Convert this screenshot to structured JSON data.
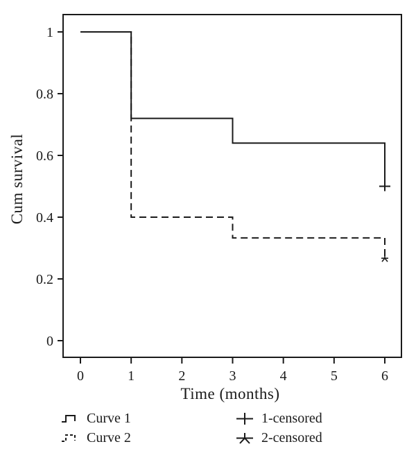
{
  "figure": {
    "background": "#ffffff",
    "line_color": "#1a1a1a",
    "text_color": "#1a1a1a"
  },
  "chart_data": {
    "type": "line",
    "subtype": "kaplan-meier-step",
    "title": "",
    "xlabel": "Time (months)",
    "ylabel": "Cum survival",
    "xlim": [
      0,
      6
    ],
    "ylim": [
      0,
      1
    ],
    "grid": false,
    "xticks": [
      0,
      1,
      2,
      3,
      4,
      5,
      6
    ],
    "xtick_labels": [
      "0",
      "1",
      "2",
      "3",
      "4",
      "5",
      "6"
    ],
    "yticks": [
      0,
      0.2,
      0.4,
      0.6,
      0.8,
      1
    ],
    "ytick_labels": [
      "0",
      "0.2",
      "0.4",
      "0.6",
      "0.8",
      "1"
    ],
    "series": [
      {
        "name": "Curve 1",
        "style": "solid",
        "points": [
          [
            0,
            1
          ],
          [
            1,
            1
          ],
          [
            1,
            0.72
          ],
          [
            3,
            0.72
          ],
          [
            3,
            0.64
          ],
          [
            6,
            0.64
          ],
          [
            6,
            0.5
          ]
        ]
      },
      {
        "name": "Curve 2",
        "style": "dashed",
        "points": [
          [
            0,
            1
          ],
          [
            1,
            1
          ],
          [
            1,
            0.4
          ],
          [
            3,
            0.4
          ],
          [
            3,
            0.333
          ],
          [
            6,
            0.333
          ],
          [
            6,
            0.267
          ]
        ]
      }
    ],
    "censored_markers": [
      {
        "series": "Curve 1",
        "marker": "plus",
        "x": 6,
        "y": 0.5
      },
      {
        "series": "Curve 2",
        "marker": "star",
        "x": 6,
        "y": 0.267
      }
    ],
    "legend_position": "below"
  },
  "legend": {
    "items": [
      {
        "label": "Curve 1",
        "glyph": "solid-step"
      },
      {
        "label": "Curve 2",
        "glyph": "dashed-step"
      },
      {
        "label": "1-censored",
        "glyph": "plus"
      },
      {
        "label": "2-censored",
        "glyph": "star"
      }
    ]
  }
}
